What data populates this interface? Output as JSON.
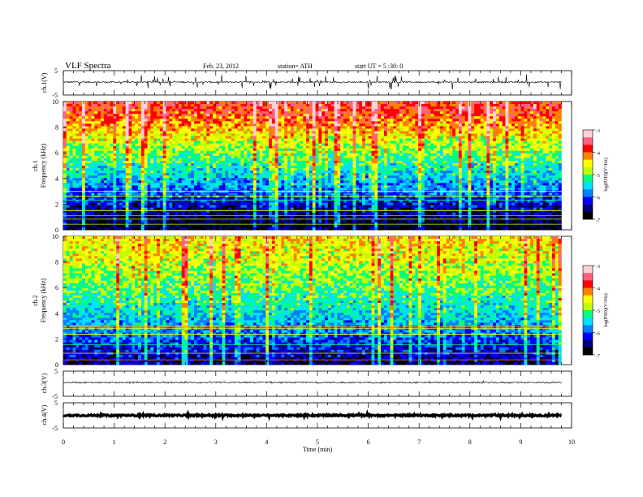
{
  "header": {
    "title": "VLF  Spectra",
    "date": "Feb. 23, 2012",
    "station": "station= ATH",
    "start": "start  UT  =   5  :30: 0"
  },
  "x_axis": {
    "label": "Time  (min)",
    "ticks": [
      "0",
      "1",
      "2",
      "3",
      "4",
      "5",
      "6",
      "7",
      "8",
      "9",
      "10"
    ],
    "range": [
      0,
      10
    ]
  },
  "colorbar": {
    "label": "log(PSD)(V²/Hz)",
    "ticks": [
      "-3",
      "-4",
      "-5",
      "-6",
      "-7"
    ],
    "range": [
      -7,
      -3
    ],
    "colors": [
      "#000000",
      "#00007a",
      "#0000ff",
      "#0080ff",
      "#00e0ff",
      "#00ff80",
      "#c0ff00",
      "#ffff00",
      "#ff8000",
      "#ff0000",
      "#ff6080",
      "#ffd0d8"
    ]
  },
  "chart_data": [
    {
      "type": "line",
      "panel": "ch.1 waveform",
      "ylabel": "ch.1(V)",
      "yticks": [
        "5",
        "-5"
      ],
      "ylim": [
        -5,
        5
      ],
      "x_range_min": [
        0,
        9.8
      ],
      "description_values": {
        "baseline": 0.3,
        "spike_amplitude": 3
      }
    },
    {
      "type": "heatmap",
      "panel": "ch.1 spectrogram",
      "ylabel": "ch.1",
      "ylabel2": "Frequency  (kHz)",
      "yticks": [
        "0",
        "2",
        "4",
        "6",
        "8",
        "10"
      ],
      "ylim": [
        0,
        10
      ],
      "xlim": [
        0,
        9.8
      ],
      "zlim": [
        -7,
        -3
      ],
      "profile": {
        "freq_khz": [
          0,
          1,
          2,
          3,
          4,
          5,
          6,
          7,
          8,
          9,
          10
        ],
        "logpsd": [
          -6.9,
          -6.7,
          -6.3,
          -5.9,
          -5.6,
          -5.3,
          -5.0,
          -4.7,
          -4.3,
          -4.0,
          -3.8
        ]
      }
    },
    {
      "type": "heatmap",
      "panel": "ch.2 spectrogram",
      "ylabel": "ch.2",
      "ylabel2": "Frequency  (kHz)",
      "yticks": [
        "0",
        "2",
        "4",
        "6",
        "8",
        "10"
      ],
      "ylim": [
        0,
        10
      ],
      "xlim": [
        0,
        9.8
      ],
      "zlim": [
        -7,
        -3
      ],
      "profile": {
        "freq_khz": [
          0,
          1,
          2,
          3,
          4,
          5,
          6,
          7,
          8,
          9,
          10
        ],
        "logpsd": [
          -6.6,
          -6.3,
          -6.0,
          -5.7,
          -5.5,
          -5.3,
          -5.1,
          -4.9,
          -4.7,
          -4.6,
          -4.5
        ]
      }
    },
    {
      "type": "line",
      "panel": "ch.3 waveform",
      "ylabel": "ch.3(V)",
      "yticks": [
        "5",
        "-5"
      ],
      "ylim": [
        -5,
        5
      ],
      "x_range_min": [
        0,
        9.8
      ],
      "description_values": {
        "baseline": 0.5,
        "spike_amplitude": 0.3
      }
    },
    {
      "type": "line",
      "panel": "ch.4 waveform",
      "ylabel": "ch.4(V)",
      "yticks": [
        "5",
        "-5"
      ],
      "ylim": [
        -5,
        5
      ],
      "x_range_min": [
        0,
        9.8
      ],
      "description_values": {
        "baseline": 0,
        "spike_amplitude": 0.5
      }
    }
  ]
}
